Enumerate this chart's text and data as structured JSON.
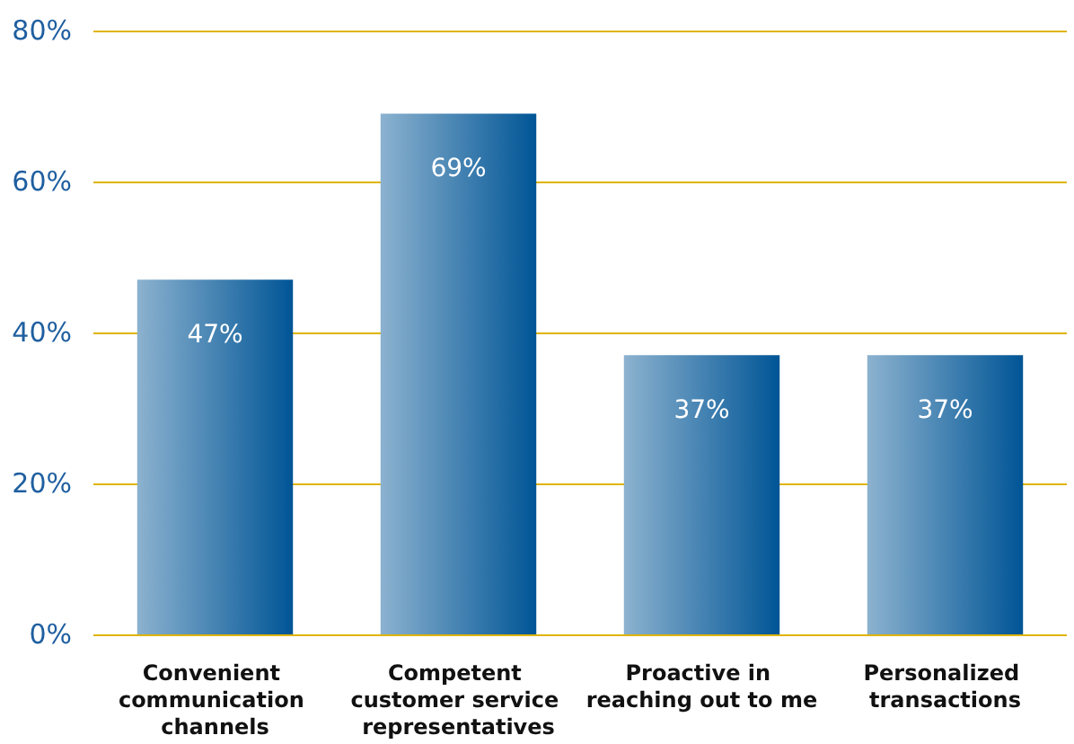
{
  "chart_data": {
    "type": "bar",
    "categories": [
      "Convenient communication channels",
      "Competent customer service representatives",
      "Proactive in reaching out to me",
      "Personalized transactions"
    ],
    "values": [
      47,
      69,
      37,
      37
    ],
    "value_labels": [
      "47%",
      "69%",
      "37%",
      "37%"
    ],
    "color": "#005596",
    "ylim": [
      0,
      80
    ],
    "yticks": [
      {
        "value": 0,
        "label": "0%"
      },
      {
        "value": 20,
        "label": "20%"
      },
      {
        "value": 40,
        "label": "40%"
      },
      {
        "value": 60,
        "label": "60%"
      },
      {
        "value": 80,
        "label": "80%"
      }
    ],
    "grid": "y"
  }
}
